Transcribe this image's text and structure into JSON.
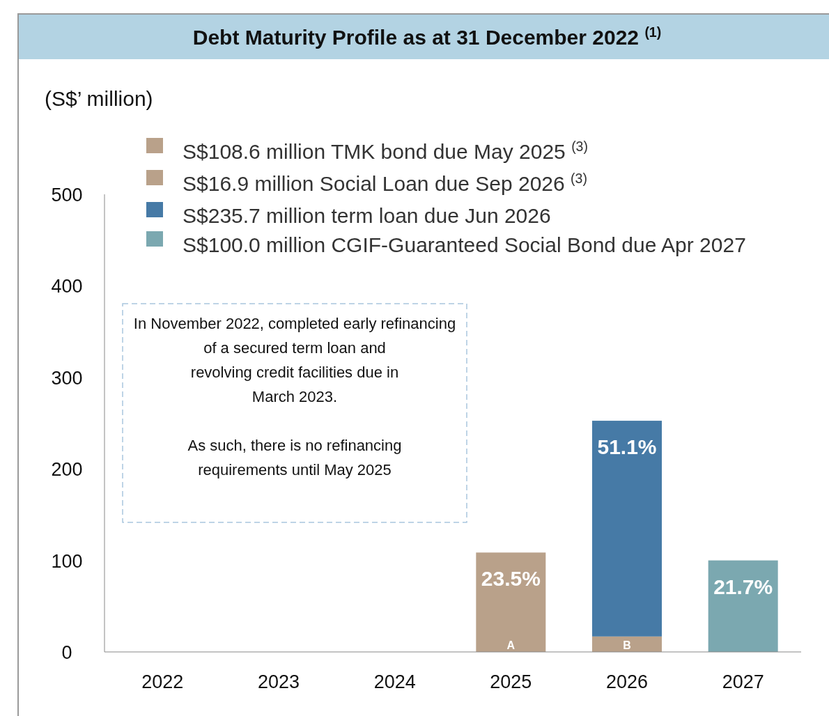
{
  "chart_data": {
    "type": "bar",
    "stacked": true,
    "title": "Debt Maturity Profile as at 31 December 2022 $^{(1)}$",
    "ylabel": "(S$’ million)",
    "categories": [
      "2022",
      "2023",
      "2024",
      "2025",
      "2026",
      "2027"
    ],
    "series": [
      {
        "name": "S$108.6 million TMK bond due May 2025 $^{(3)}$",
        "color": "#b9a18a",
        "values": [
          null,
          null,
          null,
          108.6,
          null,
          null
        ]
      },
      {
        "name": "S$16.9 million Social Loan due Sep 2026 $^{(3)}$",
        "color": "#b9a18a",
        "values": [
          null,
          null,
          null,
          null,
          16.9,
          null
        ]
      },
      {
        "name": "S$235.7 million term loan due Jun 2026",
        "color": "#467aa6",
        "values": [
          null,
          null,
          null,
          null,
          235.7,
          null
        ]
      },
      {
        "name": "S$100.0 million CGIF-Guaranteed Social Bond due Apr 2027",
        "color": "#7ba8b0",
        "values": [
          null,
          null,
          null,
          null,
          null,
          100.0
        ]
      }
    ],
    "ylim": [
      0,
      500
    ],
    "yticks": [
      0,
      100,
      200,
      300,
      400,
      500
    ],
    "grid": false,
    "legend": "top",
    "annotations": [
      {
        "text": "A",
        "x": "2025",
        "y": 0
      },
      {
        "text": "B",
        "x": "2026",
        "y": 0
      },
      {
        "text": "23.5%",
        "x": "2025",
        "y": 108.6
      },
      {
        "text": "51.1%",
        "x": "2026",
        "y": 252.6
      },
      {
        "text": "21.7%",
        "x": "2027",
        "y": 100.0
      },
      "In November 2022, completed early refinancing\nof a secured term loan and\nrevolving credit facilities due in\nMarch 2023.\n\nAs such, there is no refinancing\nrequirements until May 2025"
    ]
  }
}
